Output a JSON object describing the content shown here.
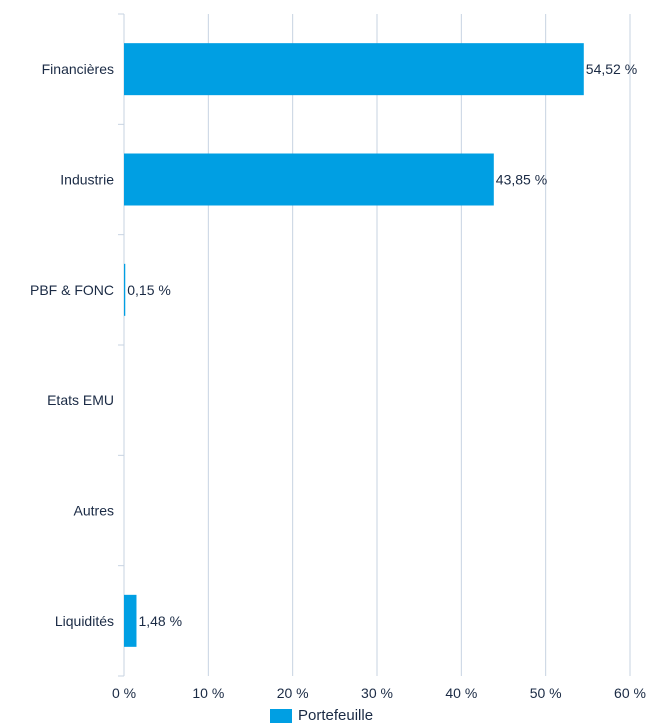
{
  "chart_data": {
    "type": "bar",
    "orientation": "horizontal",
    "categories": [
      "Financières",
      "Industrie",
      "PBF & FONC",
      "Etats EMU",
      "Autres",
      "Liquidités"
    ],
    "series": [
      {
        "name": "Portefeuille",
        "values": [
          54.52,
          43.85,
          0.15,
          0,
          0,
          1.48
        ],
        "labels": [
          "54,52 %",
          "43,85 %",
          "0,15 %",
          "",
          "",
          "1,48 %"
        ],
        "color": "#009fe3"
      }
    ],
    "xlim": [
      0,
      60
    ],
    "x_ticks": [
      0,
      10,
      20,
      30,
      40,
      50,
      60
    ],
    "x_tick_labels": [
      "0 %",
      "10 %",
      "20 %",
      "30 %",
      "40 %",
      "50 %",
      "60 %"
    ],
    "grid": "vertical",
    "legend_position": "bottom"
  },
  "colors": {
    "bar": "#009fe3",
    "grid": "#c7d3e2",
    "text": "#1a2a44"
  }
}
